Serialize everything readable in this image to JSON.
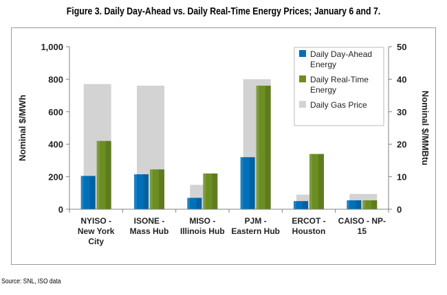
{
  "title": "Figure 3. Daily Day-Ahead vs. Daily Real-Time Energy Prices; January 6 and 7.",
  "source": "Source: SNL, ISO data",
  "chart_data": {
    "type": "bar",
    "ylabel": "Nominal $/MWh",
    "y2label": "Nominal $/MMBtu",
    "ylim": [
      0,
      1000
    ],
    "y2lim": [
      0,
      50
    ],
    "yticks": [
      "0",
      "200",
      "400",
      "600",
      "800",
      "1,000"
    ],
    "y2ticks": [
      "0",
      "10",
      "20",
      "30",
      "40",
      "50"
    ],
    "grid": false,
    "legend_position": "top-right",
    "categories": [
      [
        "NYISO -",
        "New York",
        "City"
      ],
      [
        "ISONE -",
        "Mass Hub"
      ],
      [
        "MISO -",
        "Illinois Hub"
      ],
      [
        "PJM -",
        "Eastern Hub"
      ],
      [
        "ERCOT -",
        "Houston"
      ],
      [
        "CAISO - NP-",
        "15"
      ]
    ],
    "series": [
      {
        "name": "Daily Gas Price",
        "axis": "right",
        "color": "#D3D3D3",
        "values": [
          38.5,
          38,
          7.5,
          40,
          4.5,
          4.7
        ]
      },
      {
        "name": "Daily Day-Ahead Energy",
        "axis": "left",
        "color": "#0070B8",
        "values": [
          205,
          215,
          70,
          320,
          50,
          55
        ]
      },
      {
        "name": "Daily Real-Time Energy",
        "axis": "left",
        "color": "#6B8E23",
        "values": [
          420,
          245,
          220,
          760,
          340,
          55
        ]
      }
    ],
    "legend_items": [
      {
        "lines": [
          "Daily Day-Ahead",
          "Energy"
        ],
        "color": "#0070B8"
      },
      {
        "lines": [
          "Daily Real-Time",
          "Energy"
        ],
        "color": "#6B8E23"
      },
      {
        "lines": [
          "Daily Gas Price"
        ],
        "color": "#D3D3D3"
      }
    ]
  }
}
